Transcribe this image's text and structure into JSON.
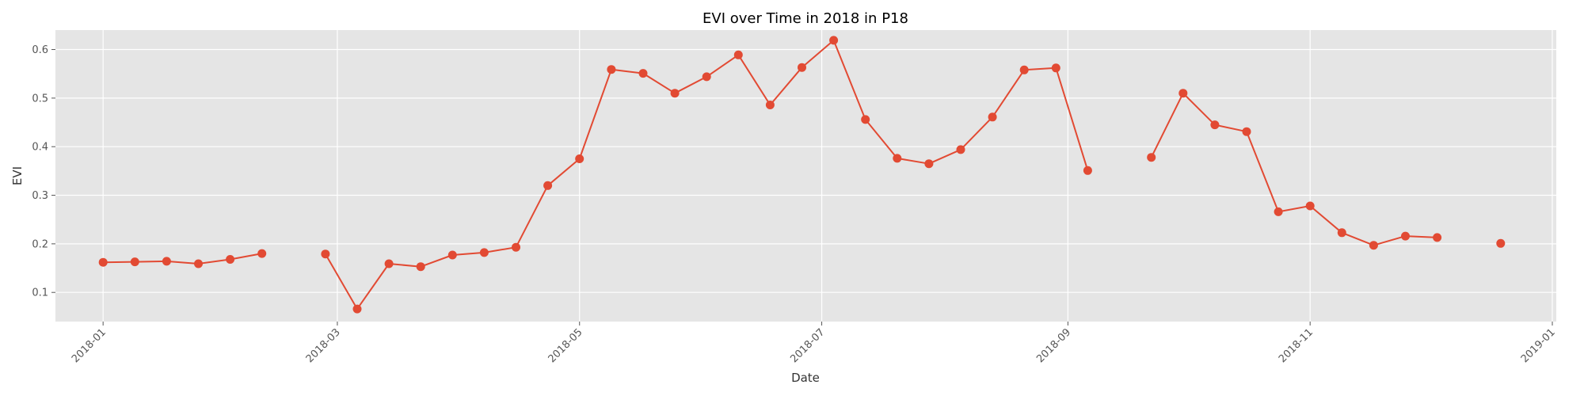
{
  "chart_data": {
    "type": "line",
    "title": "EVI over Time in 2018 in P18",
    "xlabel": "Date",
    "ylabel": "EVI",
    "xlim": [
      "2017-12-20",
      "2019-01-02"
    ],
    "ylim": [
      0.04,
      0.64
    ],
    "grid": true,
    "x_ticks": [
      "2018-01",
      "2018-03",
      "2018-05",
      "2018-07",
      "2018-09",
      "2018-11",
      "2019-01"
    ],
    "x_tick_dates": [
      "2018-01-01",
      "2018-03-01",
      "2018-05-01",
      "2018-07-01",
      "2018-09-01",
      "2018-11-01",
      "2019-01-01"
    ],
    "y_ticks": [
      0.1,
      0.2,
      0.3,
      0.4,
      0.5,
      0.6
    ],
    "series": [
      {
        "color": "#E24A33",
        "points": [
          {
            "date": "2018-01-01",
            "value": 0.162
          },
          {
            "date": "2018-01-09",
            "value": 0.163
          },
          {
            "date": "2018-01-17",
            "value": 0.164
          },
          {
            "date": "2018-01-25",
            "value": 0.159
          },
          {
            "date": "2018-02-02",
            "value": 0.168
          },
          {
            "date": "2018-02-10",
            "value": 0.18
          },
          {
            "date": "2018-02-18",
            "value": null
          },
          {
            "date": "2018-02-26",
            "value": 0.179
          },
          {
            "date": "2018-03-06",
            "value": 0.066
          },
          {
            "date": "2018-03-14",
            "value": 0.159
          },
          {
            "date": "2018-03-22",
            "value": 0.153
          },
          {
            "date": "2018-03-30",
            "value": 0.177
          },
          {
            "date": "2018-04-07",
            "value": 0.182
          },
          {
            "date": "2018-04-15",
            "value": 0.193
          },
          {
            "date": "2018-04-23",
            "value": 0.32
          },
          {
            "date": "2018-05-01",
            "value": 0.375
          },
          {
            "date": "2018-05-09",
            "value": 0.559
          },
          {
            "date": "2018-05-17",
            "value": 0.551
          },
          {
            "date": "2018-05-25",
            "value": 0.51
          },
          {
            "date": "2018-06-02",
            "value": 0.544
          },
          {
            "date": "2018-06-10",
            "value": 0.589
          },
          {
            "date": "2018-06-18",
            "value": 0.486
          },
          {
            "date": "2018-06-26",
            "value": 0.563
          },
          {
            "date": "2018-07-04",
            "value": 0.619
          },
          {
            "date": "2018-07-12",
            "value": 0.456
          },
          {
            "date": "2018-07-20",
            "value": 0.376
          },
          {
            "date": "2018-07-28",
            "value": 0.365
          },
          {
            "date": "2018-08-05",
            "value": 0.394
          },
          {
            "date": "2018-08-13",
            "value": 0.461
          },
          {
            "date": "2018-08-21",
            "value": 0.558
          },
          {
            "date": "2018-08-29",
            "value": 0.562
          },
          {
            "date": "2018-09-06",
            "value": 0.351
          },
          {
            "date": "2018-09-14",
            "value": null
          },
          {
            "date": "2018-09-22",
            "value": 0.378
          },
          {
            "date": "2018-09-30",
            "value": 0.51
          },
          {
            "date": "2018-10-08",
            "value": 0.445
          },
          {
            "date": "2018-10-16",
            "value": 0.431
          },
          {
            "date": "2018-10-24",
            "value": 0.266
          },
          {
            "date": "2018-11-01",
            "value": 0.278
          },
          {
            "date": "2018-11-09",
            "value": 0.223
          },
          {
            "date": "2018-11-17",
            "value": 0.197
          },
          {
            "date": "2018-11-25",
            "value": 0.216
          },
          {
            "date": "2018-12-03",
            "value": 0.213
          },
          {
            "date": "2018-12-11",
            "value": null
          },
          {
            "date": "2018-12-19",
            "value": 0.201
          }
        ]
      }
    ]
  }
}
